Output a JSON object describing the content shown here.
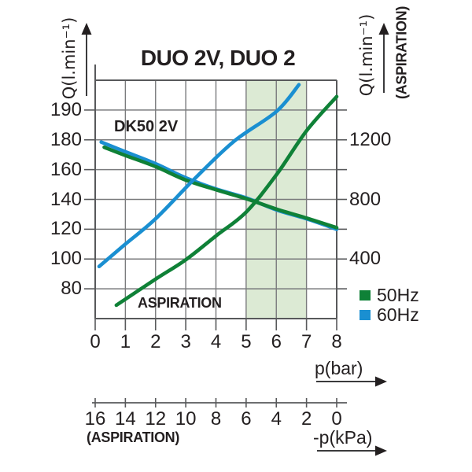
{
  "title": "DUO 2V, DUO 2",
  "colors": {
    "green": "#0f8137",
    "blue": "#1a8fd1",
    "band": "#dcead4",
    "grid": "#7a7b7d",
    "border": "#58595b",
    "text": "#231f20"
  },
  "left_axis": {
    "label": "Q(l.min⁻¹)",
    "tick_labels": [
      "190",
      "180",
      "160",
      "140",
      "120",
      "100",
      "80"
    ],
    "tick_rows": [
      1,
      2,
      3,
      4,
      5,
      6,
      7
    ]
  },
  "right_axis": {
    "label": "Q(l.min⁻¹)",
    "label2": "(ASPIRATION)",
    "tick_labels": [
      "1200",
      "800",
      "400"
    ],
    "tick_rows": [
      2,
      4,
      6
    ]
  },
  "x_axis": {
    "label": "p(bar)",
    "tick_labels": [
      "0",
      "1",
      "2",
      "3",
      "4",
      "5",
      "6",
      "7",
      "8"
    ]
  },
  "kpa_axis": {
    "label": "-p(kPa)",
    "sublabel": "(ASPIRATION)",
    "tick_labels": [
      "16",
      "14",
      "12",
      "10",
      "8",
      "6",
      "4",
      "2",
      "0"
    ]
  },
  "annotations": {
    "model": "DK50 2V",
    "aspiration": "ASPIRATION"
  },
  "legend_items": [
    {
      "label": "50Hz",
      "color_key": "green"
    },
    {
      "label": "60Hz",
      "color_key": "blue"
    }
  ],
  "chart_data": {
    "type": "line",
    "title": "DUO 2V, DUO 2",
    "x_label": "p(bar)",
    "x_range": [
      0,
      8
    ],
    "left_y_label": "Q(l.min-1)",
    "left_y_tick_values": [
      190,
      180,
      160,
      140,
      120,
      100,
      80
    ],
    "right_y_label": "Q(l.min-1) (ASPIRATION)",
    "right_y_tick_values": [
      1200,
      800,
      400
    ],
    "secondary_x_label": "-p(kPa)",
    "secondary_x_tick_values": [
      16,
      14,
      12,
      10,
      8,
      6,
      4,
      2,
      0
    ],
    "highlight_band": {
      "x_from": 5,
      "x_to": 7
    },
    "grid": true,
    "legend_position": "bottom-right",
    "series": [
      {
        "name": "60Hz pressure flow",
        "axis": "left",
        "color_key": "blue",
        "x": [
          0.2,
          1,
          2,
          3,
          4,
          5,
          6,
          7,
          8
        ],
        "y": [
          178.5,
          172,
          164,
          154.5,
          147,
          141,
          133,
          127,
          120
        ]
      },
      {
        "name": "50Hz pressure flow",
        "axis": "left",
        "color_key": "green",
        "x": [
          0.3,
          1,
          2,
          3,
          4,
          5,
          6,
          7,
          8
        ],
        "y": [
          175,
          169.5,
          162,
          153,
          146.5,
          140.5,
          133.5,
          127.5,
          121
        ]
      },
      {
        "name": "60Hz aspiration flow",
        "axis": "right",
        "color_key": "blue",
        "x": [
          0.13,
          1,
          2,
          3.3,
          4.6,
          6,
          6.75
        ],
        "y": [
          350,
          500,
          670,
          940,
          1190,
          1390,
          1570
        ]
      },
      {
        "name": "50Hz aspiration flow",
        "axis": "right",
        "color_key": "green",
        "x": [
          0.7,
          2,
          3,
          4,
          5,
          6,
          7,
          8
        ],
        "y": [
          90,
          265,
          395,
          555,
          715,
          965,
          1260,
          1490
        ]
      }
    ]
  }
}
